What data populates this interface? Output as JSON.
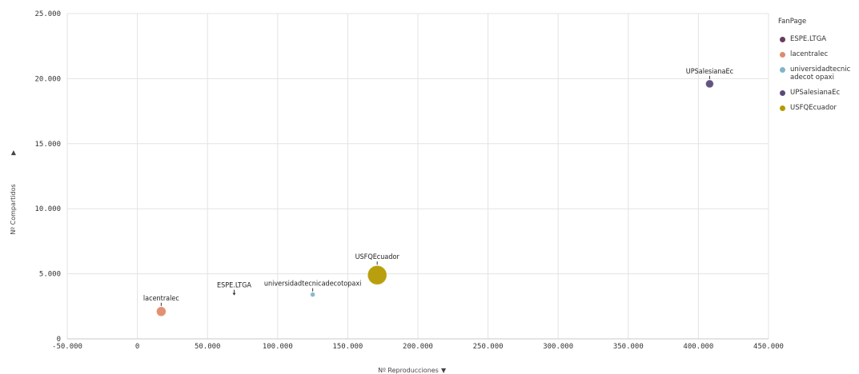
{
  "chart_data": {
    "type": "scatter",
    "title": "",
    "xlabel": "Nº Reproducciones",
    "xlabel_sort_icon": "caret-down-icon",
    "ylabel": "Nº Compartidos",
    "ylabel_sort_icon": "caret-up-icon",
    "xlim": [
      -50000,
      450000
    ],
    "ylim": [
      0,
      25000
    ],
    "x_ticks": [
      -50000,
      0,
      50000,
      100000,
      150000,
      200000,
      250000,
      300000,
      350000,
      400000,
      450000
    ],
    "x_tick_labels": [
      "-50.000",
      "0",
      "50.000",
      "100.000",
      "150.000",
      "200.000",
      "250.000",
      "300.000",
      "350.000",
      "400.000",
      "450.000"
    ],
    "y_ticks": [
      0,
      5000,
      10000,
      15000,
      20000,
      25000
    ],
    "y_tick_labels": [
      "0",
      "5.000",
      "10.000",
      "15.000",
      "20.000",
      "25.000"
    ],
    "grid": true,
    "legend_position": "right",
    "legend_title": "FanPage",
    "series": [
      {
        "name": "ESPE.LTGA",
        "color": "#6b3a5e",
        "x": 69000,
        "y": 3400,
        "size": 0.5,
        "label": "ESPE.LTGA"
      },
      {
        "name": "lacentralec",
        "color": "#e08a6c",
        "x": 17000,
        "y": 2100,
        "size": 6,
        "label": "lacentralec"
      },
      {
        "name": "universidadtecnicadecotopaxi",
        "legend_label": "universidadtecnicadecot opaxi",
        "color": "#7fb5c9",
        "x": 125000,
        "y": 3400,
        "size": 3,
        "label": "universidadtecnicadecotopaxi"
      },
      {
        "name": "UPSalesianaEc",
        "color": "#5a4a7a",
        "x": 408000,
        "y": 19600,
        "size": 5,
        "label": "UPSalesianaEc"
      },
      {
        "name": "USFQEcuador",
        "color": "#b59a00",
        "x": 171000,
        "y": 4900,
        "size": 12,
        "label": "USFQEcuador"
      }
    ]
  }
}
